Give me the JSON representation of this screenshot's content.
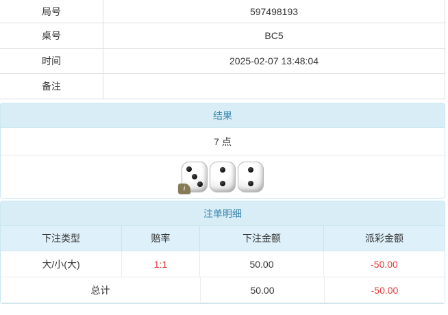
{
  "info_table": {
    "rows": [
      {
        "label": "局号",
        "value": "597498193"
      },
      {
        "label": "桌号",
        "value": "BC5"
      },
      {
        "label": "时间",
        "value": "2025-02-07 13:48:04"
      },
      {
        "label": "备注",
        "value": ""
      }
    ]
  },
  "result_panel": {
    "title": "结果",
    "points": "7 点",
    "dice": [
      3,
      2,
      2
    ],
    "info_icon": "i"
  },
  "bets_panel": {
    "title": "注单明细",
    "columns": [
      "下注类型",
      "赔率",
      "下注金额",
      "派彩金额"
    ],
    "rows": [
      {
        "type": "大/小(大)",
        "odds": "1:1",
        "amount": "50.00",
        "payout": "-50.00"
      }
    ],
    "total": {
      "label": "总计",
      "amount": "50.00",
      "payout": "-50.00"
    }
  },
  "colors": {
    "panel_title_bg": "#d9edf7",
    "panel_title_text": "#3a87ad",
    "panel_border": "#c9e7f2",
    "column_header_bg": "#def0f9",
    "negative_text": "#e23b3b",
    "body_text": "#333333"
  }
}
